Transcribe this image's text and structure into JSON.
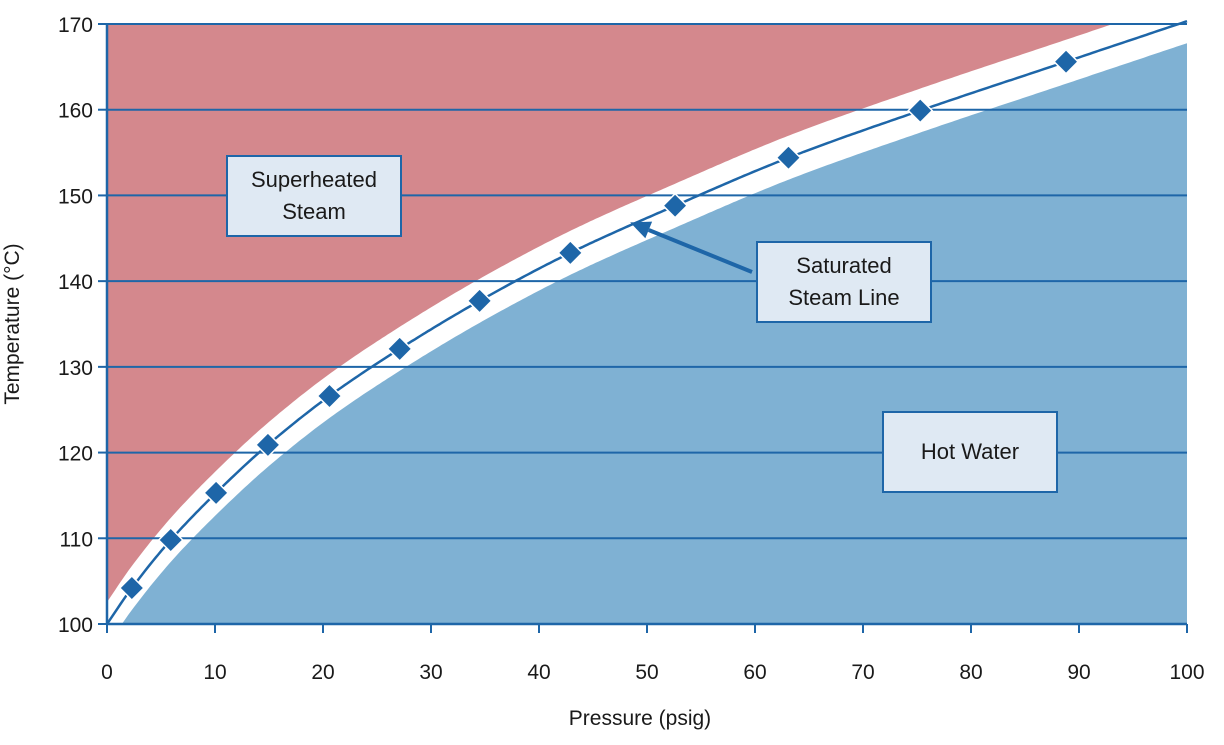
{
  "chart_data": {
    "type": "line",
    "xlabel": "Pressure (psig)",
    "ylabel": "Temperature (°C)",
    "xlim": [
      0,
      100
    ],
    "ylim": [
      100,
      170
    ],
    "x_ticks": [
      "0",
      "10",
      "20",
      "30",
      "40",
      "50",
      "60",
      "70",
      "80",
      "90",
      "100"
    ],
    "y_ticks": [
      "100",
      "110",
      "120",
      "130",
      "140",
      "150",
      "160",
      "170"
    ],
    "grid": "horizontal",
    "series": [
      {
        "name": "",
        "x": [
          2.3,
          5.9,
          10.1,
          14.9,
          20.6,
          27.1,
          34.5,
          42.9,
          52.6,
          63.1,
          75.3,
          88.8
        ],
        "y": [
          104.2,
          109.8,
          115.3,
          120.9,
          126.6,
          132.1,
          137.7,
          143.3,
          148.8,
          154.4,
          159.9,
          165.6
        ]
      }
    ],
    "regions": [
      {
        "label_lines": [
          "Superheated",
          "Steam"
        ],
        "color": "#d4888d"
      },
      {
        "label_lines": [
          "Hot Water"
        ],
        "color": "#7fb1d3"
      }
    ],
    "annotations": [
      {
        "label_lines": [
          "Saturated",
          "Steam Line"
        ],
        "arrow_target": {
          "x": 49,
          "y": 146.5
        }
      }
    ],
    "colors": {
      "superheated": "#d4888d",
      "hot_water": "#7fb1d3",
      "band": "#ffffff",
      "line": "#1e66a8",
      "marker": "#1e66a8",
      "grid": "#1e66a8",
      "axis": "#1e66a8"
    }
  }
}
